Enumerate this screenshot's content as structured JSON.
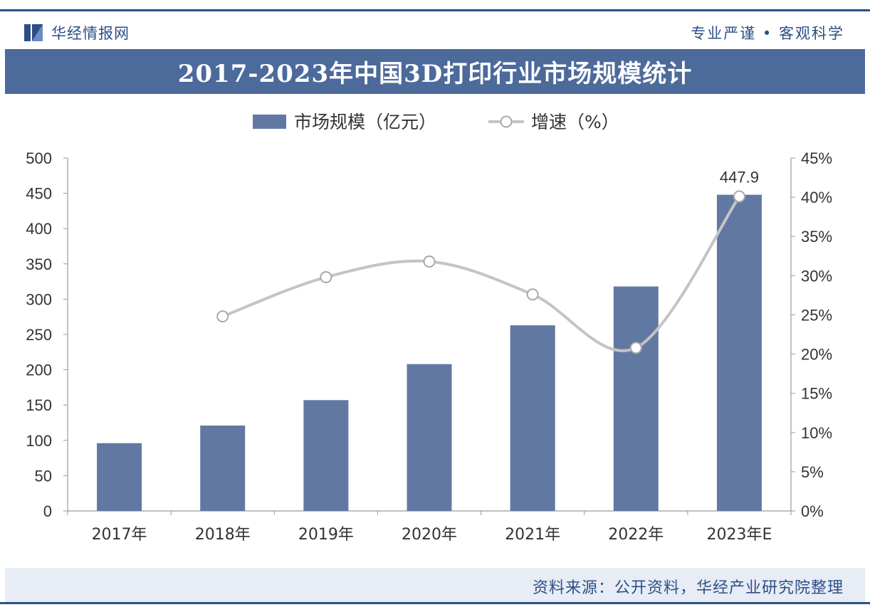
{
  "header": {
    "logo_text": "华经情报网",
    "slogan": "专业严谨 • 客观科学"
  },
  "footer": {
    "source": "资料来源：公开资料，华经产业研究院整理"
  },
  "chart_data": {
    "type": "bar",
    "title": "2017-2023年中国3D打印行业市场规模统计",
    "categories": [
      "2017年",
      "2018年",
      "2019年",
      "2020年",
      "2021年",
      "2022年",
      "2023年E"
    ],
    "series": [
      {
        "name": "市场规模（亿元）",
        "type": "bar",
        "axis": "left",
        "values": [
          96,
          121,
          157,
          208,
          263,
          318,
          447.9
        ],
        "color": "#6179a2"
      },
      {
        "name": "增速（%）",
        "type": "line",
        "axis": "right",
        "values": [
          null,
          24.8,
          29.8,
          31.8,
          27.6,
          20.8,
          40.1
        ],
        "color": "#c4c4c4"
      }
    ],
    "data_labels": [
      {
        "category": "2023年E",
        "text": "447.9"
      }
    ],
    "y_left": {
      "min": 0,
      "max": 500,
      "ticks": [
        "0",
        "50",
        "100",
        "150",
        "200",
        "250",
        "300",
        "350",
        "400",
        "450",
        "500"
      ]
    },
    "y_right": {
      "min": 0,
      "max": 45,
      "ticks": [
        "0%",
        "5%",
        "10%",
        "15%",
        "20%",
        "25%",
        "30%",
        "35%",
        "40%",
        "45%"
      ]
    },
    "legend_position": "top-center",
    "grid": false
  }
}
